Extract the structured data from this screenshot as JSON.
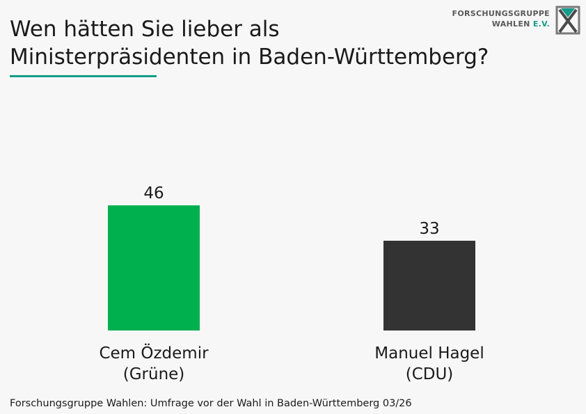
{
  "title": {
    "line1": "Wen hätten Sie lieber als",
    "line2": "Ministerpräsidenten in Baden-Württemberg?"
  },
  "logo": {
    "line1": "FORSCHUNGSGRUPPE",
    "line2_name": "WAHLEN",
    "line2_suffix": "E.V.",
    "icon": "fgw-x-logo-icon"
  },
  "colors": {
    "accent": "#159b8a",
    "bar_gruene": "#00b04f",
    "bar_cdu": "#333333",
    "logo_gray": "#7a7a7a"
  },
  "chart_data": {
    "type": "bar",
    "categories": [
      {
        "name": "Cem Özdemir",
        "party": "(Grüne)"
      },
      {
        "name": "Manuel Hagel",
        "party": "(CDU)"
      }
    ],
    "values": [
      46,
      33
    ],
    "ylim": [
      0,
      100
    ],
    "grid": false
  },
  "footer": "Forschungsgruppe Wahlen: Umfrage vor der Wahl in Baden-Württemberg 03/26"
}
